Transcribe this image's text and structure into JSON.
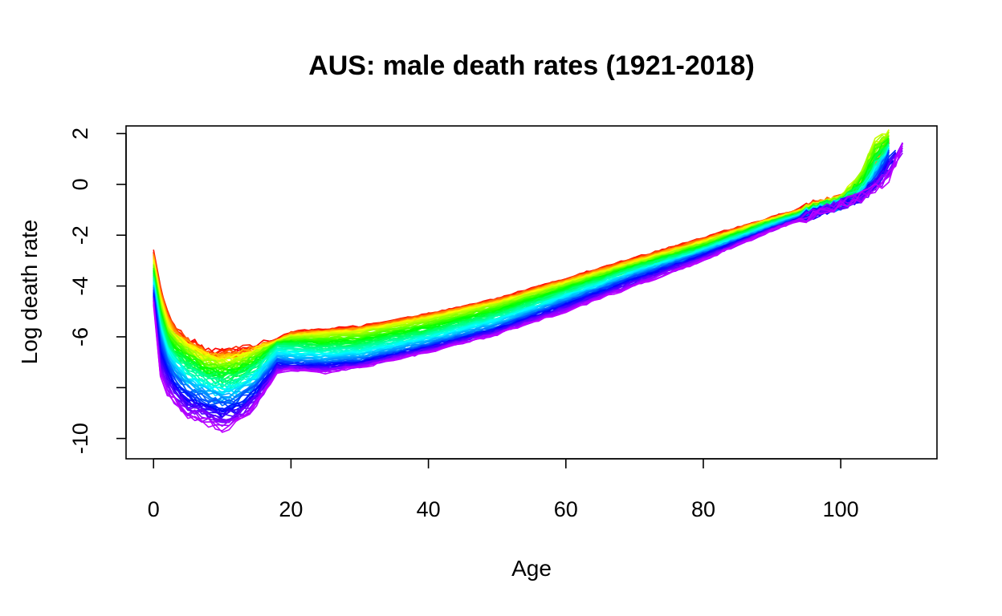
{
  "chart_data": {
    "type": "line",
    "title": "AUS: male death rates  (1921-2018)",
    "xlabel": "Age",
    "ylabel": "Log death rate",
    "xlim": [
      -4,
      114
    ],
    "ylim": [
      -10.8,
      2.3
    ],
    "x_ticks": [
      0,
      20,
      40,
      60,
      80,
      100
    ],
    "x_tick_labels": [
      "0",
      "20",
      "40",
      "60",
      "80",
      "100"
    ],
    "y_ticks": [
      2,
      0,
      -2,
      -4,
      -6,
      -8,
      -10
    ],
    "y_tick_labels": [
      "2",
      "0",
      "-2",
      "-4",
      "-6",
      "",
      "-10"
    ],
    "grid": false,
    "legend": "none",
    "color_scale": "rainbow (red = earliest year, violet = latest year)",
    "year_range": [
      1921,
      2018
    ],
    "series": [
      {
        "x": [
          0,
          1,
          2,
          3,
          5,
          8,
          10,
          12,
          15,
          18,
          20,
          25,
          30,
          40,
          50,
          60,
          70,
          80,
          90,
          95,
          100,
          103,
          105,
          107
        ],
        "values": [
          -2.6,
          -4.0,
          -5.0,
          -5.6,
          -6.1,
          -6.6,
          -6.6,
          -6.5,
          -6.4,
          -6.1,
          -5.8,
          -5.7,
          -5.6,
          -5.1,
          -4.5,
          -3.7,
          -2.9,
          -2.1,
          -1.3,
          -0.9,
          -0.6,
          -0.4,
          0.3,
          1.5
        ]
      },
      {
        "x": [
          0,
          1,
          2,
          3,
          5,
          8,
          10,
          12,
          15,
          18,
          20,
          25,
          30,
          40,
          50,
          60,
          70,
          80,
          90,
          95,
          100,
          103,
          105,
          107
        ],
        "values": [
          -3.1,
          -4.6,
          -5.6,
          -6.0,
          -6.5,
          -6.9,
          -7.0,
          -6.9,
          -6.6,
          -6.2,
          -6.0,
          -5.9,
          -5.8,
          -5.3,
          -4.7,
          -3.9,
          -3.1,
          -2.3,
          -1.4,
          -1.0,
          -0.6,
          0.4,
          1.7,
          2.0
        ]
      },
      {
        "x": [
          0,
          1,
          2,
          3,
          5,
          8,
          10,
          12,
          15,
          18,
          20,
          25,
          30,
          40,
          50,
          60,
          70,
          80,
          90,
          95,
          100,
          103,
          105,
          107
        ],
        "values": [
          -3.6,
          -5.2,
          -6.2,
          -6.6,
          -7.1,
          -7.6,
          -7.7,
          -7.6,
          -7.1,
          -6.3,
          -6.3,
          -6.4,
          -6.3,
          -5.8,
          -5.1,
          -4.2,
          -3.3,
          -2.5,
          -1.5,
          -1.1,
          -0.7,
          -0.2,
          0.8,
          1.4
        ]
      },
      {
        "x": [
          0,
          1,
          2,
          3,
          5,
          8,
          10,
          12,
          15,
          18,
          20,
          25,
          30,
          40,
          50,
          60,
          70,
          80,
          90,
          95,
          100,
          103,
          105,
          107
        ],
        "values": [
          -4.1,
          -6.0,
          -7.0,
          -7.5,
          -8.1,
          -8.4,
          -8.6,
          -8.5,
          -7.9,
          -6.9,
          -7.0,
          -7.0,
          -6.9,
          -6.3,
          -5.6,
          -4.6,
          -3.6,
          -2.7,
          -1.7,
          -1.2,
          -0.8,
          -0.5,
          0.2,
          1.2
        ]
      },
      {
        "x": [
          0,
          1,
          2,
          3,
          5,
          8,
          10,
          12,
          15,
          18,
          20,
          25,
          30,
          40,
          50,
          60,
          70,
          80,
          90,
          95,
          100,
          103,
          105,
          107,
          109
        ],
        "values": [
          -4.7,
          -7.6,
          -8.2,
          -8.6,
          -9.1,
          -9.4,
          -9.6,
          -9.4,
          -8.7,
          -7.4,
          -7.3,
          -7.4,
          -7.2,
          -6.6,
          -5.9,
          -5.0,
          -4.0,
          -3.0,
          -1.8,
          -1.3,
          -0.8,
          -0.5,
          -0.2,
          0.3,
          1.5
        ]
      }
    ]
  }
}
